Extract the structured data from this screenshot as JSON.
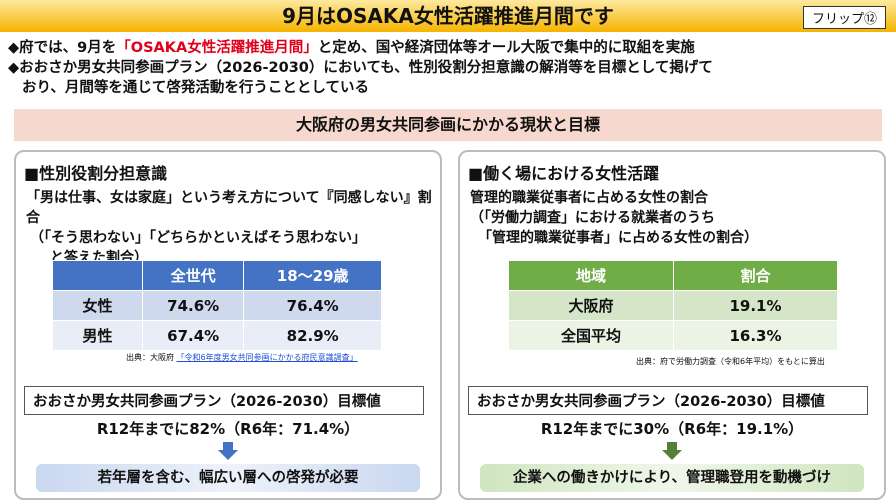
{
  "header": {
    "title": "9月はOSAKA女性活躍推進月間です",
    "flip": "フリップ⑫"
  },
  "bullets": [
    {
      "parts": [
        "◆府では、9月を",
        "「OSAKA女性活躍推進月間」",
        "と定め、国や経済団体等オール大阪で集中的に取組を実施"
      ]
    },
    {
      "lines": [
        "◆おおさか男女共同参画プラン（2026-2030）においても、性別役割分担意識の解消等を目標として掲げて",
        "おり、月間等を通じて啓発活動を行うこととしている"
      ]
    }
  ],
  "section_title": "大阪府の男女共同参画にかかる現状と目標",
  "panels": [
    {
      "heading": "■性別役割分担意識",
      "description": [
        "「男は仕事、女は家庭」という考え方について『同感しない』割合",
        "（「そう思わない」「どちらかといえばそう思わない」",
        "と答えた割合）"
      ],
      "table": {
        "columns": [
          "全世代",
          "18～29歳"
        ],
        "rows": [
          {
            "label": "女性",
            "values": [
              "74.6%",
              "76.4%"
            ]
          },
          {
            "label": "男性",
            "values": [
              "67.4%",
              "82.9%"
            ]
          }
        ]
      },
      "source": "出典：大阪府",
      "source_link": "「令和6年度男女共同参画にかかる府民意識調査」",
      "target_title": "おおさか男女共同参画プラン（2026-2030）目標値",
      "target": "R12年までに82%（R6年：71.4%）",
      "conclusion": "若年層を含む、幅広い層への啓発が必要"
    },
    {
      "heading": "■働く場における女性活躍",
      "description": [
        "管理的職業従事者に占める女性の割合",
        "（「労働力調査」における就業者のうち",
        "「管理的職業従事者」に占める女性の割合）"
      ],
      "table": {
        "columns": [
          "地域",
          "割合"
        ],
        "rows": [
          {
            "label": "大阪府",
            "values": [
              "19.1%"
            ]
          },
          {
            "label": "全国平均",
            "values": [
              "16.3%"
            ]
          }
        ]
      },
      "source": "出典：府で労働力調査（令和6年平均）をもとに算出",
      "target_title": "おおさか男女共同参画プラン（2026-2030）目標値",
      "target": "R12年までに30%（R6年：19.1%）",
      "conclusion": "企業への働きかけにより、管理職登用を動機づけ"
    }
  ]
}
